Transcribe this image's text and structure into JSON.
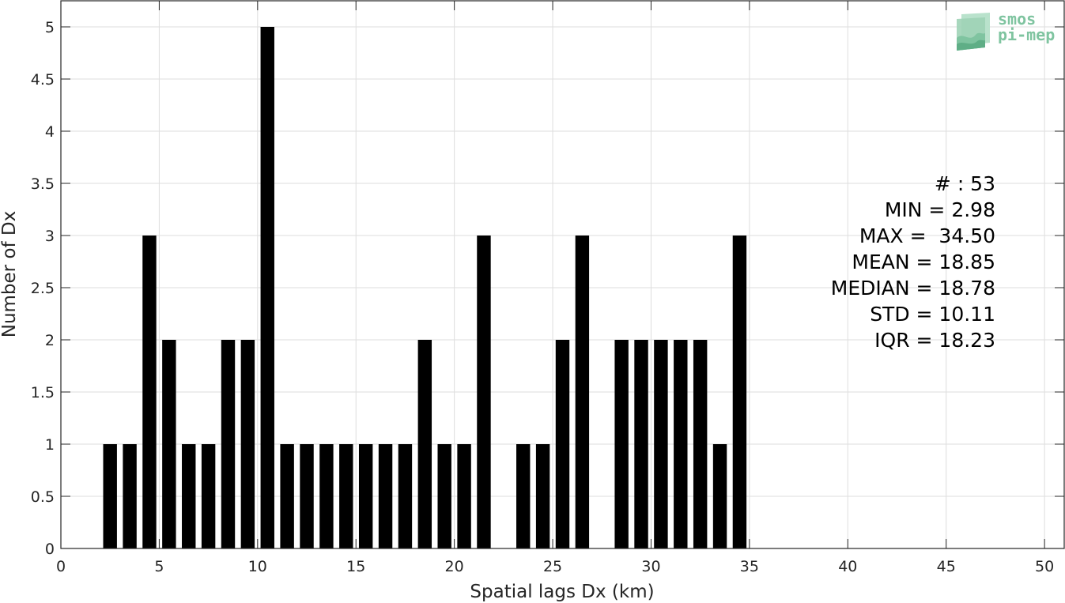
{
  "chart_data": {
    "type": "bar",
    "title": "",
    "xlabel": "Spatial lags Dx (km)",
    "ylabel": "Number of Dx",
    "xlim": [
      0,
      51
    ],
    "ylim": [
      0,
      5.25
    ],
    "grid": true,
    "bar_width": 0.7,
    "bar_color": "#000000",
    "x": [
      2.5,
      3.5,
      4.5,
      5.5,
      6.5,
      7.5,
      8.5,
      9.5,
      10.5,
      11.5,
      12.5,
      13.5,
      14.5,
      15.5,
      16.5,
      17.5,
      18.5,
      19.5,
      20.5,
      21.5,
      23.5,
      24.5,
      25.5,
      26.5,
      28.5,
      29.5,
      30.5,
      31.5,
      32.5,
      33.5,
      34.5
    ],
    "values": [
      1,
      1,
      3,
      2,
      1,
      1,
      2,
      2,
      5,
      1,
      1,
      1,
      1,
      1,
      1,
      1,
      2,
      1,
      1,
      3,
      1,
      1,
      2,
      3,
      2,
      2,
      2,
      2,
      2,
      1,
      3
    ],
    "xticks": [
      0,
      5,
      10,
      15,
      20,
      25,
      30,
      35,
      40,
      45,
      50
    ],
    "xtick_labels": [
      "0",
      "5",
      "10",
      "15",
      "20",
      "25",
      "30",
      "35",
      "40",
      "45",
      "50"
    ],
    "yticks": [
      0,
      0.5,
      1,
      1.5,
      2,
      2.5,
      3,
      3.5,
      4,
      4.5,
      5
    ],
    "ytick_labels": [
      "0",
      "0.5",
      "1",
      "1.5",
      "2",
      "2.5",
      "3",
      "3.5",
      "4",
      "4.5",
      "5"
    ]
  },
  "stats": {
    "count": "# : 53",
    "min": "MIN = 2.98",
    "max": "MAX =  34.50",
    "mean": "MEAN = 18.85",
    "median": "MEDIAN = 18.78",
    "std": "STD = 10.11",
    "iqr": "IQR = 18.23"
  },
  "logo": {
    "line1": "smos",
    "line2": "pi-mep",
    "color": "#7fc4a0"
  }
}
